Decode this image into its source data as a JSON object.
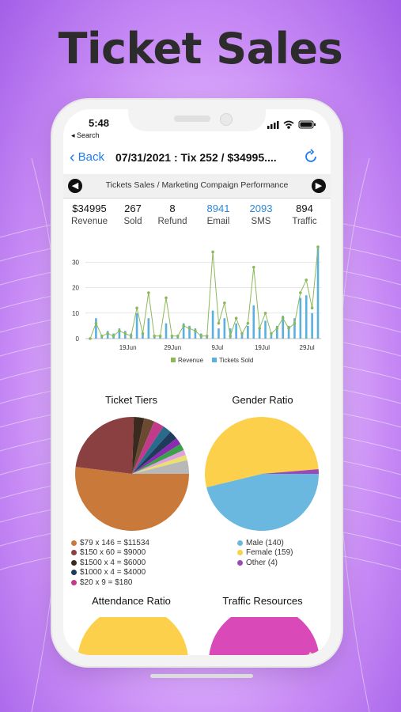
{
  "headline": "Ticket Sales",
  "status_bar": {
    "time": "5:48",
    "back_app": "◂ Search"
  },
  "nav": {
    "back_label": "Back",
    "title": "07/31/2021 : Tix 252 / $34995...."
  },
  "breadcrumb": "Tickets Sales / Marketing Compaign Performance",
  "stats": [
    {
      "value": "$34995",
      "label": "Revenue"
    },
    {
      "value": "267",
      "label": "Sold"
    },
    {
      "value": "8",
      "label": "Refund"
    },
    {
      "value": "8941",
      "label": "Email"
    },
    {
      "value": "2093",
      "label": "SMS"
    },
    {
      "value": "894",
      "label": "Traffic"
    }
  ],
  "colors": {
    "accent": "#1e7cf0",
    "revenue": "#8db85a",
    "tickets": "#5bb0de"
  },
  "chart_data": {
    "type": "line",
    "y_ticks": [
      "0",
      "10",
      "20",
      "30"
    ],
    "ylim": [
      0,
      36
    ],
    "x_ticks": [
      "19Jun",
      "29Jun",
      "9Jul",
      "19Jul",
      "29Jul"
    ],
    "legend": [
      "Revenue",
      "Tickets Sold"
    ],
    "series": [
      {
        "name": "Revenue",
        "values": [
          0,
          6,
          1,
          2,
          1,
          3,
          2,
          1,
          12,
          2,
          18,
          1,
          1,
          16,
          1,
          1,
          5,
          4,
          3,
          1,
          1,
          34,
          6,
          14,
          1,
          8,
          2,
          6,
          28,
          4,
          10,
          2,
          4,
          8,
          4,
          6,
          18,
          23,
          12,
          36
        ]
      },
      {
        "name": "Tickets Sold",
        "values": [
          0,
          8,
          1,
          3,
          2,
          4,
          3,
          2,
          10,
          2,
          8,
          1,
          1,
          6,
          1,
          1,
          6,
          5,
          4,
          2,
          1,
          11,
          4,
          8,
          4,
          6,
          2,
          5,
          13,
          4,
          7,
          2,
          5,
          9,
          5,
          8,
          16,
          17,
          10,
          36
        ]
      }
    ]
  },
  "pies": {
    "ticket_tiers": {
      "title": "Ticket Tiers",
      "legend": [
        {
          "label": "$79 x 146 = $11534",
          "color": "#c97a3a"
        },
        {
          "label": "$150 x 60 = $9000",
          "color": "#8a4040"
        },
        {
          "label": "$1500 x 4 = $6000",
          "color": "#3a2a1e"
        },
        {
          "label": "$1000 x 4 = $4000",
          "color": "#1f3a5a"
        },
        {
          "label": "$20 x 9 = $180",
          "color": "#c23a8a"
        }
      ],
      "slices": [
        {
          "value": 0.53,
          "color": "#c97a3a"
        },
        {
          "value": 0.24,
          "color": "#8a4040"
        },
        {
          "value": 0.03,
          "color": "#3a2a1e"
        },
        {
          "value": 0.03,
          "color": "#6a4a30"
        },
        {
          "value": 0.03,
          "color": "#c23a8a"
        },
        {
          "value": 0.025,
          "color": "#2a6a8a"
        },
        {
          "value": 0.025,
          "color": "#1f3a5a"
        },
        {
          "value": 0.02,
          "color": "#8a2ab0"
        },
        {
          "value": 0.02,
          "color": "#3aa04a"
        },
        {
          "value": 0.015,
          "color": "#e0a0e0"
        },
        {
          "value": 0.015,
          "color": "#e8e070"
        },
        {
          "value": 0.04,
          "color": "#b8b8b8"
        }
      ]
    },
    "gender_ratio": {
      "title": "Gender Ratio",
      "legend": [
        {
          "label": "Male (140)",
          "color": "#6ab8e0"
        },
        {
          "label": "Female (159)",
          "color": "#fcd04a"
        },
        {
          "label": "Other (4)",
          "color": "#9a4ab8"
        }
      ],
      "slices": [
        {
          "value": 140,
          "color": "#6ab8e0"
        },
        {
          "value": 159,
          "color": "#fcd04a"
        },
        {
          "value": 4,
          "color": "#9a4ab8"
        }
      ]
    },
    "attendance_ratio": {
      "title": "Attendance Ratio",
      "color": "#fcd04a"
    },
    "traffic_resources": {
      "title": "Traffic Resources",
      "color": "#d94ab8"
    }
  }
}
